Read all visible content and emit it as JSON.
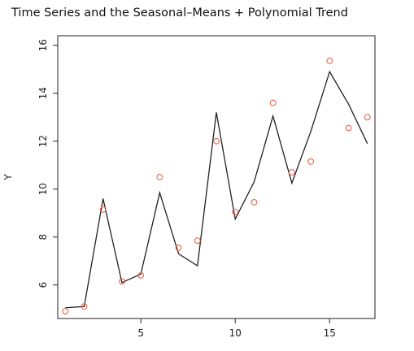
{
  "chart_data": {
    "type": "line",
    "title": "Time Series and the Seasonal–Means + Polynomial Trend",
    "xlabel": "",
    "ylabel": "Y",
    "xlim": [
      0.6,
      17.4
    ],
    "ylim": [
      4.6,
      16.4
    ],
    "xticks": [
      5,
      10,
      15
    ],
    "yticks": [
      6,
      8,
      10,
      12,
      14,
      16
    ],
    "x": [
      1,
      2,
      3,
      4,
      5,
      6,
      7,
      8,
      9,
      10,
      11,
      12,
      13,
      14,
      15,
      16,
      17
    ],
    "series": [
      {
        "name": "",
        "kind": "points",
        "color": "#e8644f",
        "values": [
          4.9,
          5.1,
          9.15,
          6.15,
          6.4,
          10.5,
          7.55,
          7.85,
          12.0,
          9.05,
          9.45,
          13.6,
          10.7,
          11.15,
          15.35,
          12.55,
          13.0
        ]
      },
      {
        "name": "",
        "kind": "line",
        "color": "#222222",
        "values": [
          5.05,
          5.1,
          9.6,
          6.1,
          6.45,
          9.85,
          7.3,
          6.8,
          13.2,
          8.75,
          10.3,
          13.05,
          10.25,
          12.4,
          14.9,
          13.55,
          11.9
        ]
      }
    ],
    "grid": false,
    "legend": "none"
  }
}
